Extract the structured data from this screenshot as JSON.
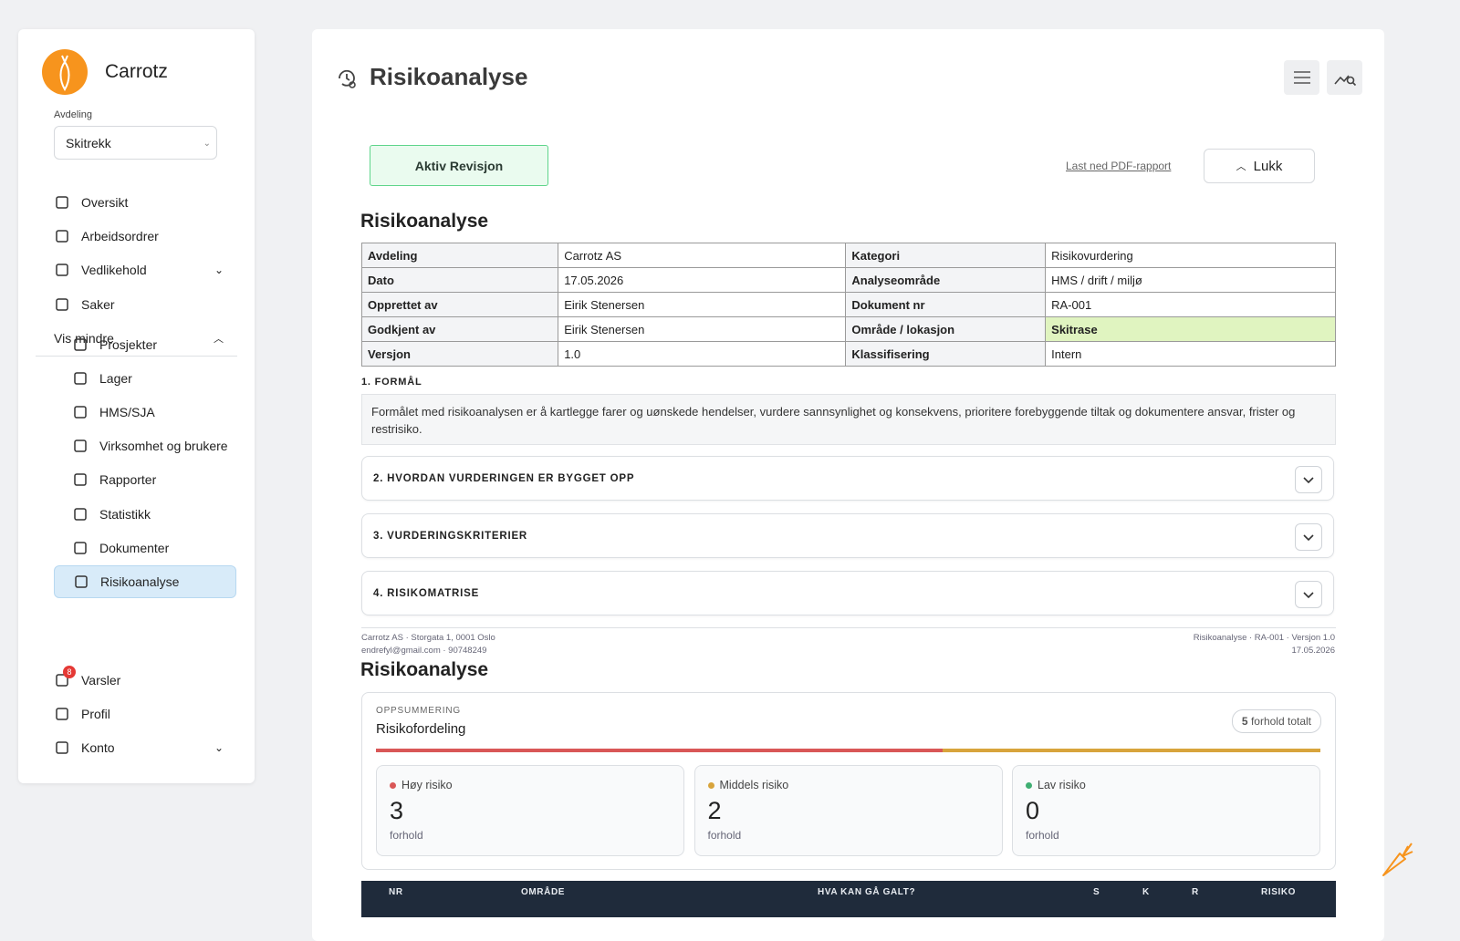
{
  "sidebar": {
    "brand": "Carrotz",
    "department_label": "Avdeling",
    "department": "Skitrekk",
    "nav": [
      "Oversikt",
      "Arbeidsordrer",
      "Vedlikehold",
      "Saker"
    ],
    "toggle": "Vis mindre",
    "subnav": [
      "Prosjekter",
      "Lager",
      "HMS/SJA",
      "Virksomhet og brukere",
      "Rapporter",
      "Statistikk",
      "Dokumenter",
      "Risikoanalyse"
    ],
    "bottom": [
      "Varsler",
      "Profil",
      "Konto"
    ],
    "notification_count": 8
  },
  "header": {
    "title": "Risikoanalyse"
  },
  "toolbar": {
    "status": "Aktiv Revisjon",
    "download": "Last ned PDF-rapport",
    "close": "Lukk"
  },
  "document": {
    "title": "Risikoanalyse",
    "info": [
      [
        "Avdeling",
        "Carrotz AS",
        "Kategori",
        "Risikovurdering"
      ],
      [
        "Dato",
        "17.05.2026",
        "Analyseområde",
        "HMS / drift / miljø"
      ],
      [
        "Opprettet av",
        "Eirik Stenersen",
        "Dokument nr",
        "RA-001"
      ],
      [
        "Godkjent av",
        "Eirik Stenersen",
        "Område / lokasjon",
        "Skitrase"
      ],
      [
        "Versjon",
        "1.0",
        "Klassifisering",
        "Intern"
      ]
    ],
    "purpose_title": "1. FORMÅL",
    "purpose_text": "Formålet med risikoanalysen er å kartlegge farer og uønskede hendelser, vurdere sannsynlighet og konsekvens, prioritere forebyggende tiltak og dokumentere ansvar, frister og restrisiko.",
    "sections": [
      "2. HVORDAN VURDERINGEN ER BYGGET OPP",
      "3. VURDERINGSKRITERIER",
      "4. RISIKOMATRISE"
    ],
    "footer_left": [
      "Carrotz AS · Storgata 1, 0001 Oslo",
      "endrefyl@gmail.com · 90748249"
    ],
    "footer_right": [
      "Risikoanalyse · RA-001 · Versjon 1.0",
      "17.05.2026"
    ]
  },
  "summary": {
    "title": "Risikoanalyse",
    "eyebrow": "OPPSUMMERING",
    "heading": "Risikofordeling",
    "total": 5,
    "total_label": "forhold totalt",
    "levels": [
      {
        "name": "Høy risiko",
        "color": "#d95757",
        "count": 3,
        "unit": "forhold"
      },
      {
        "name": "Middels risiko",
        "color": "#d8a43c",
        "count": 2,
        "unit": "forhold"
      },
      {
        "name": "Lav risiko",
        "color": "#3fae72",
        "count": 0,
        "unit": "forhold"
      }
    ]
  },
  "table": {
    "columns": [
      "NR",
      "OMRÅDE",
      "HVA KAN GÅ GALT?",
      "S",
      "K",
      "R",
      "RISIKO"
    ]
  }
}
